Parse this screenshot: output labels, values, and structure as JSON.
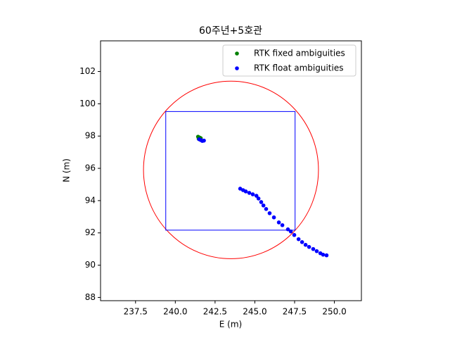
{
  "chart_data": {
    "type": "scatter",
    "title": "60주년+5호관",
    "x_label": "E (m)",
    "y_label": "N (m)",
    "xlim": [
      235.3,
      251.7
    ],
    "ylim": [
      87.8,
      103.9
    ],
    "xticks": [
      {
        "value": 237.5,
        "label": "237.5"
      },
      {
        "value": 240,
        "label": "240.0"
      },
      {
        "value": 242.5,
        "label": "242.5"
      },
      {
        "value": 245,
        "label": "245.0"
      },
      {
        "value": 247.5,
        "label": "247.5"
      },
      {
        "value": 250,
        "label": "250.0"
      }
    ],
    "yticks": [
      88,
      90,
      92,
      94,
      96,
      98,
      100,
      102
    ],
    "legend": "upper right",
    "series": [
      {
        "name": "RTK fixed ambiguities",
        "color": "green",
        "x": [
          241.43,
          241.52,
          241.6,
          241.47
        ],
        "values": [
          97.96,
          97.91,
          97.87,
          97.83
        ]
      },
      {
        "name": "RTK float ambiguities",
        "color": "blue",
        "x": [
          241.5,
          241.6,
          241.7,
          241.8,
          244.08,
          244.26,
          244.43,
          244.65,
          244.87,
          245.1,
          245.23,
          245.4,
          245.54,
          245.71,
          245.93,
          246.2,
          246.51,
          246.73,
          247.08,
          247.26,
          247.48,
          247.75,
          247.97,
          248.19,
          248.41,
          248.67,
          248.89,
          249.12,
          249.29,
          249.51
        ],
        "values": [
          97.8,
          97.75,
          97.7,
          97.72,
          94.74,
          94.65,
          94.57,
          94.48,
          94.39,
          94.3,
          94.13,
          93.91,
          93.7,
          93.48,
          93.22,
          92.96,
          92.65,
          92.48,
          92.22,
          92.09,
          91.87,
          91.61,
          91.43,
          91.26,
          91.13,
          91.0,
          90.87,
          90.74,
          90.65,
          90.61
        ]
      }
    ],
    "circle": {
      "center": [
        243.5,
        95.9
      ],
      "radius": 5.5,
      "color": "red"
    },
    "rectangle": {
      "x": [
        239.4,
        247.53
      ],
      "y": [
        92.17,
        99.52
      ],
      "color": "blue"
    }
  }
}
